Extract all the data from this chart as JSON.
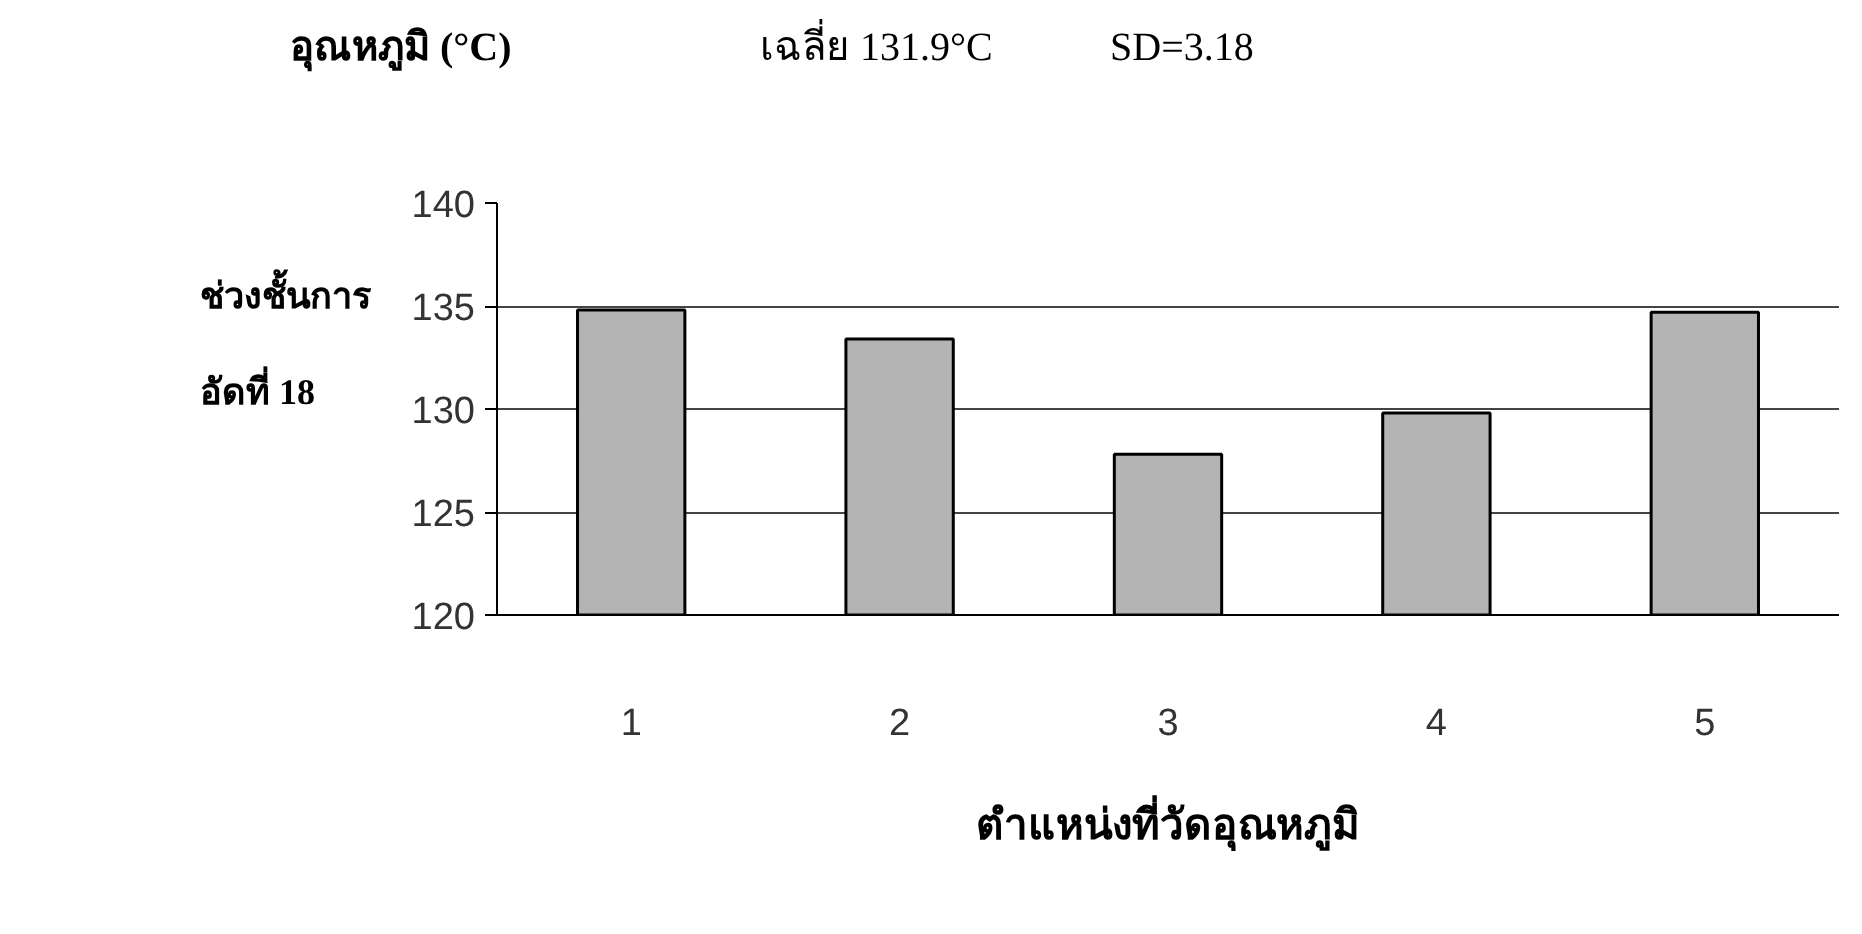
{
  "chart_data": {
    "type": "bar",
    "title": "อุณหภูมิ (°C)",
    "xlabel": "ตำแหน่งที่วัดอุณหภูมิ",
    "ylabel": "ช่วงชั้นการ\nอัดที่ 18",
    "annotations": [
      "เฉลี่ย 131.9°C",
      "SD=3.18"
    ],
    "categories": [
      "1",
      "2",
      "3",
      "4",
      "5"
    ],
    "values": [
      134.8,
      133.4,
      127.8,
      129.8,
      134.7
    ],
    "color": "#b4b4b4",
    "ylim": [
      120,
      140
    ],
    "yticks": [
      120,
      125,
      130,
      135,
      140
    ],
    "grid": "y"
  }
}
